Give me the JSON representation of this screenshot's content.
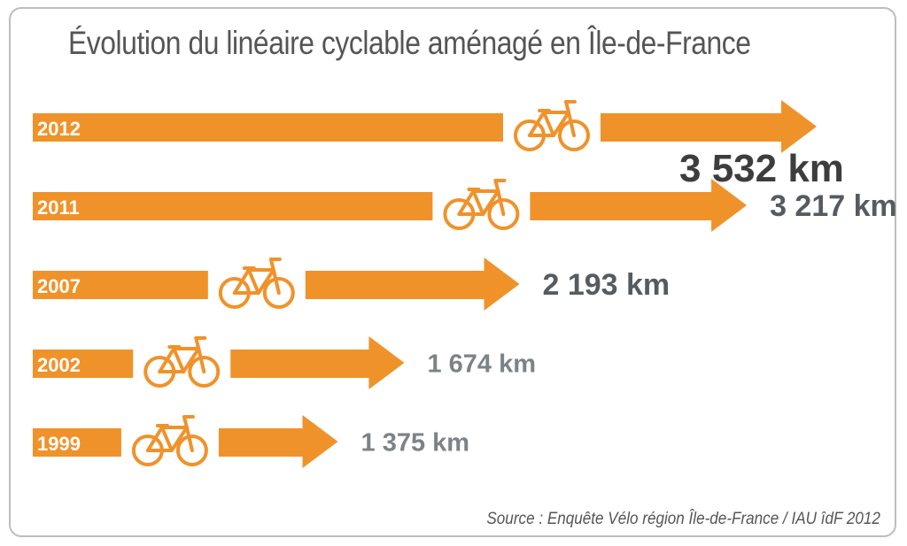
{
  "title": "Évolution du linéaire cyclable aménagé en Île-de-France",
  "source": "Source : Enquête Vélo région Île-de-France / IAU îdF 2012",
  "colors": {
    "bar": "#f0922a",
    "value_dark": "#3d3d3d",
    "value_mid": "#555b61",
    "value_light": "#7d8287",
    "year_text": "#ffffff"
  },
  "icon": "bicycle-icon",
  "chart_data": {
    "type": "bar",
    "orientation": "horizontal",
    "title": "Évolution du linéaire cyclable aménagé en Île-de-France",
    "unit": "km",
    "categories": [
      "2012",
      "2011",
      "2007",
      "2002",
      "1999"
    ],
    "values": [
      3532,
      3217,
      2193,
      1674,
      1375
    ],
    "value_labels": [
      "3 532 km",
      "3 217 km",
      "2 193 km",
      "1 674 km",
      "1 375 km"
    ],
    "grid": false,
    "legend": "none"
  }
}
